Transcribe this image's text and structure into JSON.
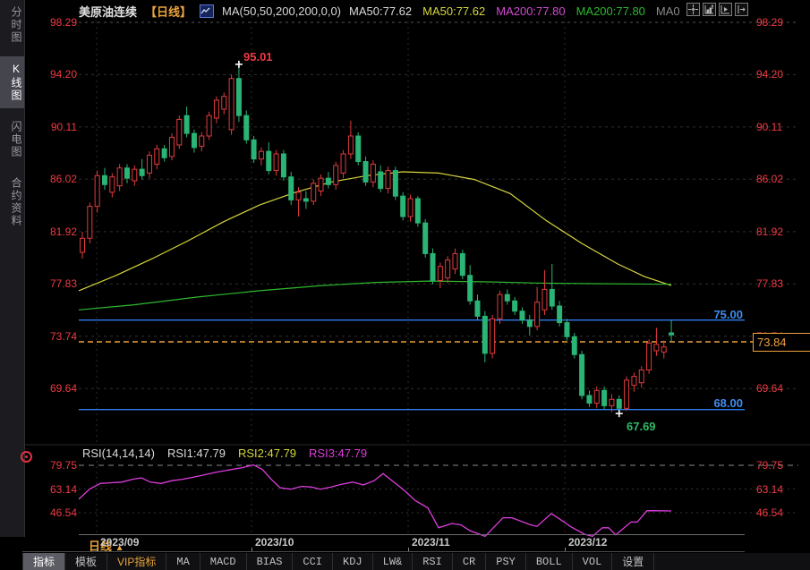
{
  "topbar": {
    "title": "美原油连续",
    "period_tag": "【日线】",
    "ma_settings": "MA(50,50,200,200,0,0)",
    "ma_values": [
      {
        "label": "MA50:77.62",
        "color": "#dcdcdc"
      },
      {
        "label": "MA50:77.62",
        "color": "#d6d63e"
      },
      {
        "label": "MA200:77.80",
        "color": "#d24ad2"
      },
      {
        "label": "MA200:77.80",
        "color": "#2eb82e"
      },
      {
        "label": "MA0",
        "color": "#8a8a8a"
      }
    ],
    "icons": [
      "crosshair-icon",
      "axis-scale-icon",
      "axis-play-icon",
      "shift-right-icon"
    ]
  },
  "sidebar": {
    "items": [
      {
        "label": "分时图",
        "active": false
      },
      {
        "label": "K线图",
        "active": true
      },
      {
        "label": "闪电图",
        "active": false
      },
      {
        "label": "合约资料",
        "active": false
      }
    ]
  },
  "annotations": {
    "high_label": "95.01",
    "low_label": "67.69",
    "upper_line_label": "75.00",
    "lower_line_label": "68.00",
    "last_price": "73.84"
  },
  "rsi_header": {
    "title": "RSI(14,14,14)",
    "rsi1": "RSI1:47.79",
    "rsi2": "RSI2:47.79",
    "rsi3": "RSI3:47.79",
    "colors": [
      "#dcdcdc",
      "#dcdcdc",
      "#d6d63e",
      "#dd3ddd"
    ]
  },
  "xaxis": {
    "period_label": "日线",
    "period_arrow": "▲",
    "months": [
      "2023/09",
      "2023/10",
      "2023/11",
      "2023/12"
    ]
  },
  "tabs": [
    {
      "label": "指标",
      "active": true,
      "vip": false,
      "cjk": true
    },
    {
      "label": "模板",
      "active": false,
      "vip": false,
      "cjk": true
    },
    {
      "label": "VIP指标",
      "active": false,
      "vip": true,
      "cjk": true
    },
    {
      "label": "MA",
      "active": false,
      "vip": false,
      "cjk": false
    },
    {
      "label": "MACD",
      "active": false,
      "vip": false,
      "cjk": false
    },
    {
      "label": "BIAS",
      "active": false,
      "vip": false,
      "cjk": false
    },
    {
      "label": "CCI",
      "active": false,
      "vip": false,
      "cjk": false
    },
    {
      "label": "KDJ",
      "active": false,
      "vip": false,
      "cjk": false
    },
    {
      "label": "LW&",
      "active": false,
      "vip": false,
      "cjk": false
    },
    {
      "label": "RSI",
      "active": false,
      "vip": false,
      "cjk": false
    },
    {
      "label": "CR",
      "active": false,
      "vip": false,
      "cjk": false
    },
    {
      "label": "PSY",
      "active": false,
      "vip": false,
      "cjk": false
    },
    {
      "label": "BOLL",
      "active": false,
      "vip": false,
      "cjk": false
    },
    {
      "label": "VOL",
      "active": false,
      "vip": false,
      "cjk": false
    },
    {
      "label": "设置",
      "active": false,
      "vip": false,
      "cjk": true
    }
  ],
  "chart_data": [
    {
      "type": "candlestick",
      "title": "美原油连续 日线",
      "up_color": "#e23b3b",
      "down_color": "#2ab475",
      "y_ticks": [
        98.29,
        94.2,
        90.11,
        86.02,
        81.92,
        77.83,
        73.74,
        69.64
      ],
      "high_point": 95.01,
      "low_point": 67.69,
      "h_lines": [
        {
          "value": 75.0,
          "color": "#2f7ded",
          "style": "solid"
        },
        {
          "value": 68.0,
          "color": "#2f7ded",
          "style": "solid"
        },
        {
          "value": 73.84,
          "color": "#f0a13a",
          "style": "dashed"
        }
      ],
      "ohlc": [
        [
          80.3,
          81.9,
          79.8,
          81.4
        ],
        [
          81.4,
          84.2,
          81.0,
          83.9
        ],
        [
          83.9,
          86.7,
          83.4,
          86.3
        ],
        [
          86.3,
          86.9,
          85.2,
          85.6
        ],
        [
          85.0,
          86.5,
          84.6,
          86.2
        ],
        [
          85.5,
          87.2,
          85.1,
          86.9
        ],
        [
          86.9,
          87.2,
          85.7,
          86.1
        ],
        [
          85.9,
          87.1,
          85.5,
          86.8
        ],
        [
          86.8,
          87.6,
          86.0,
          86.3
        ],
        [
          86.5,
          88.2,
          86.1,
          87.9
        ],
        [
          87.2,
          88.7,
          86.8,
          88.4
        ],
        [
          88.4,
          88.7,
          87.4,
          87.7
        ],
        [
          87.8,
          89.6,
          87.5,
          89.3
        ],
        [
          88.7,
          91.0,
          88.4,
          90.7
        ],
        [
          91.0,
          91.7,
          89.3,
          89.6
        ],
        [
          89.6,
          89.9,
          88.1,
          88.5
        ],
        [
          88.6,
          89.7,
          88.2,
          89.4
        ],
        [
          89.4,
          91.3,
          89.1,
          91.0
        ],
        [
          90.8,
          92.5,
          90.4,
          92.2
        ],
        [
          91.5,
          92.8,
          91.1,
          92.5
        ],
        [
          89.9,
          94.2,
          89.5,
          93.9
        ],
        [
          93.9,
          95.01,
          90.5,
          91.0
        ],
        [
          91.0,
          91.4,
          88.8,
          89.1
        ],
        [
          89.1,
          89.4,
          87.3,
          87.6
        ],
        [
          87.6,
          88.5,
          87.1,
          88.2
        ],
        [
          88.2,
          88.9,
          86.4,
          86.7
        ],
        [
          86.7,
          88.3,
          86.3,
          88.0
        ],
        [
          88.0,
          88.3,
          85.9,
          86.2
        ],
        [
          86.2,
          86.6,
          84.0,
          84.4
        ],
        [
          84.4,
          85.4,
          83.1,
          85.0
        ],
        [
          84.5,
          85.1,
          83.7,
          84.3
        ],
        [
          84.3,
          86.0,
          84.0,
          85.7
        ],
        [
          85.1,
          86.4,
          84.7,
          86.1
        ],
        [
          86.1,
          86.6,
          85.3,
          85.6
        ],
        [
          85.6,
          87.4,
          85.2,
          87.1
        ],
        [
          86.5,
          88.3,
          86.1,
          88.0
        ],
        [
          88.0,
          90.6,
          87.6,
          89.4
        ],
        [
          89.4,
          89.7,
          87.1,
          87.4
        ],
        [
          87.4,
          87.8,
          85.5,
          85.8
        ],
        [
          85.8,
          87.5,
          85.4,
          87.2
        ],
        [
          86.6,
          87.1,
          85.0,
          85.3
        ],
        [
          85.3,
          87.0,
          84.9,
          86.7
        ],
        [
          86.7,
          87.0,
          84.4,
          84.7
        ],
        [
          84.7,
          85.0,
          82.8,
          83.1
        ],
        [
          83.1,
          84.8,
          82.7,
          84.5
        ],
        [
          84.5,
          84.7,
          82.3,
          82.6
        ],
        [
          82.6,
          82.9,
          79.9,
          80.2
        ],
        [
          80.2,
          80.6,
          77.8,
          78.1
        ],
        [
          78.1,
          79.5,
          77.5,
          79.2
        ],
        [
          78.3,
          80.0,
          77.9,
          79.7
        ],
        [
          79.0,
          80.6,
          78.6,
          80.2
        ],
        [
          80.2,
          80.5,
          78.2,
          78.5
        ],
        [
          78.5,
          79.3,
          76.2,
          76.5
        ],
        [
          76.5,
          77.0,
          75.0,
          75.3
        ],
        [
          75.3,
          75.7,
          71.7,
          72.4
        ],
        [
          72.4,
          75.4,
          72.0,
          75.1
        ],
        [
          75.1,
          77.3,
          74.7,
          77.0
        ],
        [
          77.0,
          77.4,
          76.2,
          76.5
        ],
        [
          76.5,
          76.8,
          75.4,
          75.7
        ],
        [
          75.7,
          76.0,
          74.7,
          75.0
        ],
        [
          75.0,
          75.4,
          73.8,
          74.5
        ],
        [
          74.5,
          77.6,
          74.2,
          76.4
        ],
        [
          75.8,
          78.9,
          75.4,
          77.4
        ],
        [
          77.4,
          79.4,
          75.8,
          76.1
        ],
        [
          76.1,
          76.5,
          74.5,
          74.8
        ],
        [
          74.8,
          75.1,
          73.4,
          73.7
        ],
        [
          73.7,
          74.0,
          72.0,
          72.3
        ],
        [
          72.3,
          72.6,
          68.8,
          69.1
        ],
        [
          69.1,
          69.5,
          68.2,
          68.5
        ],
        [
          68.5,
          69.8,
          68.1,
          69.5
        ],
        [
          69.5,
          69.8,
          68.0,
          68.3
        ],
        [
          68.3,
          69.2,
          67.8,
          68.8
        ],
        [
          68.8,
          69.1,
          67.69,
          68.1
        ],
        [
          68.1,
          70.6,
          67.9,
          70.3
        ],
        [
          69.9,
          70.9,
          69.4,
          70.6
        ],
        [
          70.1,
          71.4,
          69.7,
          71.1
        ],
        [
          71.1,
          73.5,
          70.8,
          73.2
        ],
        [
          72.6,
          74.4,
          72.2,
          73.1
        ],
        [
          72.5,
          73.4,
          72.0,
          72.9
        ],
        [
          74.0,
          75.0,
          73.3,
          73.84
        ]
      ],
      "overlays": [
        {
          "name": "MA50",
          "color": "#d6d63e",
          "points": [
            [
              88,
              77.3
            ],
            [
              130,
              78.5
            ],
            [
              170,
              79.8
            ],
            [
              210,
              81.2
            ],
            [
              250,
              82.7
            ],
            [
              290,
              84.0
            ],
            [
              330,
              85.0
            ],
            [
              370,
              85.8
            ],
            [
              410,
              86.3
            ],
            [
              450,
              86.6
            ],
            [
              490,
              86.5
            ],
            [
              530,
              86.0
            ],
            [
              570,
              84.9
            ],
            [
              610,
              82.8
            ],
            [
              650,
              81.0
            ],
            [
              690,
              79.4
            ],
            [
              720,
              78.4
            ],
            [
              750,
              77.7
            ]
          ]
        },
        {
          "name": "MA200",
          "color": "#2eb82e",
          "points": [
            [
              88,
              75.8
            ],
            [
              150,
              76.2
            ],
            [
              220,
              76.8
            ],
            [
              290,
              77.3
            ],
            [
              360,
              77.7
            ],
            [
              420,
              77.95
            ],
            [
              480,
              78.05
            ],
            [
              540,
              78.0
            ],
            [
              600,
              77.9
            ],
            [
              660,
              77.85
            ],
            [
              750,
              77.8
            ]
          ]
        }
      ]
    },
    {
      "type": "line",
      "name": "RSI",
      "color": "#dd3ddd",
      "y_ticks": [
        79.75,
        63.14,
        46.54
      ],
      "points": [
        [
          88,
          56
        ],
        [
          100,
          63
        ],
        [
          112,
          67
        ],
        [
          124,
          67.5
        ],
        [
          136,
          68
        ],
        [
          148,
          70
        ],
        [
          158,
          71
        ],
        [
          168,
          68
        ],
        [
          180,
          67
        ],
        [
          192,
          69
        ],
        [
          204,
          70
        ],
        [
          216,
          71.5
        ],
        [
          228,
          73
        ],
        [
          242,
          75
        ],
        [
          256,
          76.5
        ],
        [
          270,
          78
        ],
        [
          283,
          80
        ],
        [
          293,
          77
        ],
        [
          303,
          70
        ],
        [
          313,
          64
        ],
        [
          325,
          63
        ],
        [
          337,
          65
        ],
        [
          348,
          64.5
        ],
        [
          358,
          63
        ],
        [
          370,
          64.5
        ],
        [
          382,
          66.5
        ],
        [
          394,
          68
        ],
        [
          406,
          66
        ],
        [
          418,
          69
        ],
        [
          428,
          74
        ],
        [
          440,
          68
        ],
        [
          452,
          62
        ],
        [
          464,
          55
        ],
        [
          478,
          50
        ],
        [
          490,
          36
        ],
        [
          505,
          39
        ],
        [
          515,
          38
        ],
        [
          525,
          34
        ],
        [
          542,
          30
        ],
        [
          562,
          43
        ],
        [
          572,
          43
        ],
        [
          593,
          38
        ],
        [
          600,
          37
        ],
        [
          616,
          46
        ],
        [
          628,
          41
        ],
        [
          637,
          37
        ],
        [
          653,
          31.5
        ],
        [
          662,
          30
        ],
        [
          673,
          36
        ],
        [
          680,
          36
        ],
        [
          688,
          31
        ],
        [
          705,
          40
        ],
        [
          712,
          40
        ],
        [
          723,
          48
        ],
        [
          737,
          47.9
        ],
        [
          750,
          47.79
        ]
      ]
    }
  ]
}
